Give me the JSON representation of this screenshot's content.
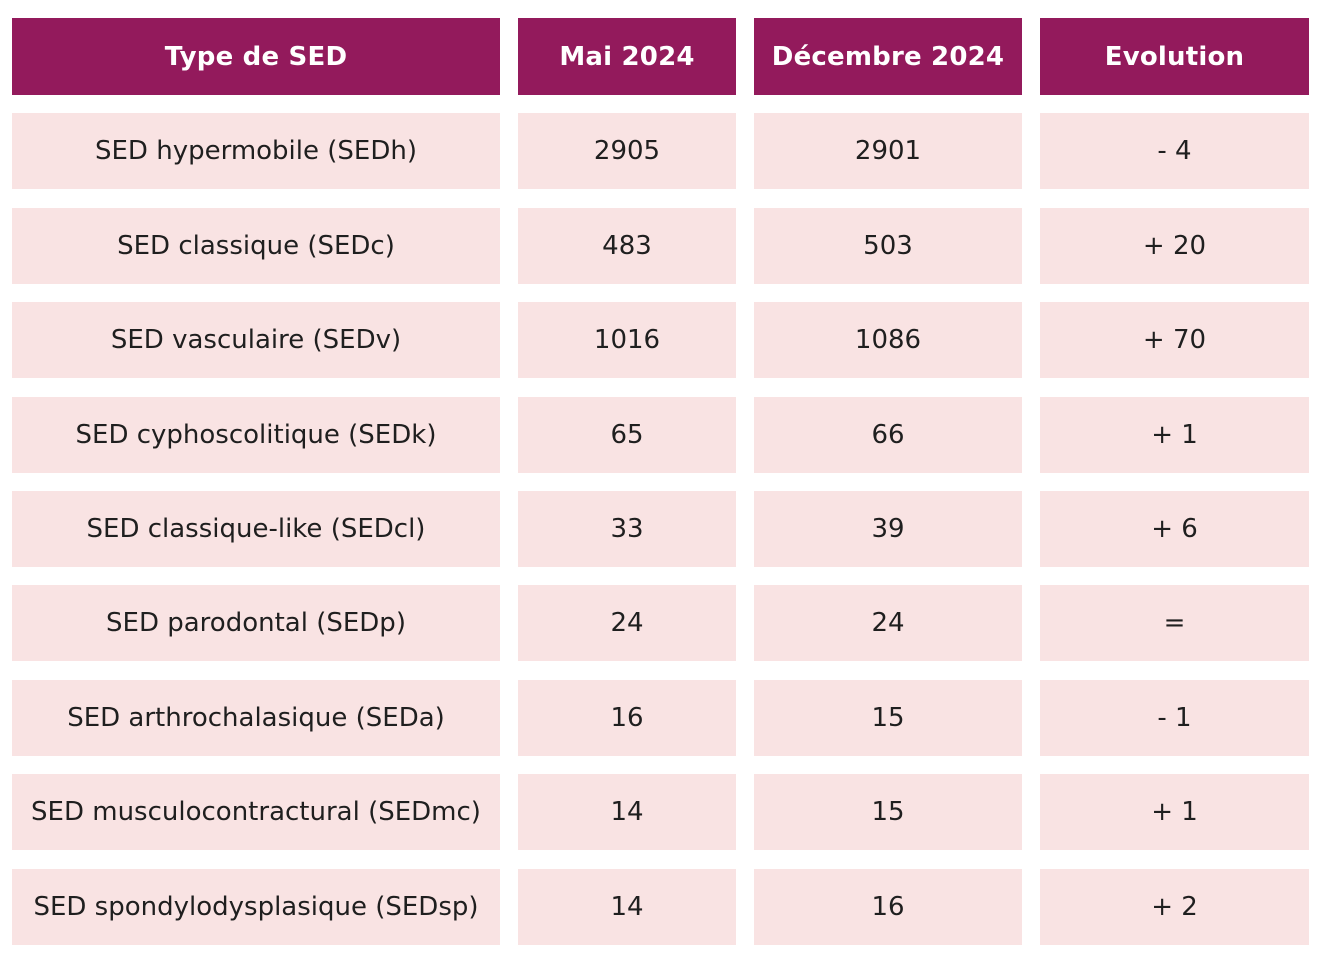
{
  "colors": {
    "header_bg": "#931a5c",
    "row_bg": "#f9e3e3"
  },
  "chart_data": {
    "type": "table",
    "columns": [
      "Type de SED",
      "Mai 2024",
      "Décembre 2024",
      "Evolution"
    ],
    "rows": [
      [
        "SED hypermobile (SEDh)",
        "2905",
        "2901",
        "- 4"
      ],
      [
        "SED classique (SEDc)",
        "483",
        "503",
        "+ 20"
      ],
      [
        "SED vasculaire (SEDv)",
        "1016",
        "1086",
        "+ 70"
      ],
      [
        "SED cyphoscolitique (SEDk)",
        "65",
        "66",
        "+ 1"
      ],
      [
        "SED classique-like (SEDcl)",
        "33",
        "39",
        "+ 6"
      ],
      [
        "SED parodontal (SEDp)",
        "24",
        "24",
        "="
      ],
      [
        "SED arthrochalasique (SEDa)",
        "16",
        "15",
        "- 1"
      ],
      [
        "SED musculocontractural (SEDmc)",
        "14",
        "15",
        "+ 1"
      ],
      [
        "SED spondylodysplasique (SEDsp)",
        "14",
        "16",
        "+ 2"
      ]
    ]
  }
}
